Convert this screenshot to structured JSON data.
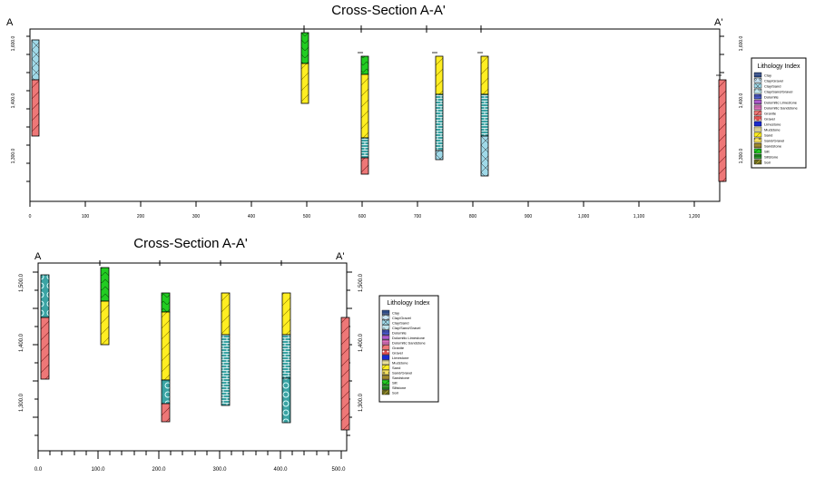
{
  "top": {
    "title": "Cross-Section A-A'",
    "end_left": "A",
    "end_right": "A'",
    "y_ticks": [
      "1,600.0",
      "1,400.0",
      "1,300.0"
    ],
    "x_ticks": [
      "0",
      "100",
      "200",
      "300",
      "400",
      "500",
      "600",
      "700",
      "800",
      "900",
      "1,000",
      "1,100",
      "1,200"
    ],
    "legend_title": "Lithology Index",
    "legend_items": [
      "Clay",
      "Clay/Gravel",
      "Clay/Sand",
      "Clay/Sand/Gravel",
      "Dolomite",
      "Dolomitic Limestone",
      "Dolomitic Sandstone",
      "Granite",
      "Gravel",
      "Limestone",
      "Mudstone",
      "Sand",
      "Sand/Gravel",
      "Sandstone",
      "Silt",
      "Siltstone",
      "Soil"
    ]
  },
  "bottom": {
    "title": "Cross-Section A-A'",
    "end_left": "A",
    "end_right": "A'",
    "y_ticks": [
      "1,500.0",
      "1,400.0",
      "1,300.0"
    ],
    "x_ticks": [
      "0.0",
      "100.0",
      "200.0",
      "300.0",
      "400.0",
      "500.0"
    ],
    "legend_title": "Lithology Index",
    "legend_items": [
      "Clay",
      "Clay/Gravel",
      "Clay/Sand",
      "Clay/Sand/Gravel",
      "Dolomite",
      "Dolomitic Limestone",
      "Dolomitic Sandstone",
      "Granite",
      "Gravel",
      "Limestone",
      "Mudstone",
      "Sand",
      "Sand/Gravel",
      "Sandstone",
      "Silt",
      "Siltstone",
      "Soil"
    ]
  },
  "colors": {
    "clay_sand": "#9fd9e8",
    "granite": "#ee7777",
    "silt": "#22cc22",
    "sand": "#ffee22",
    "limestone": "#3aa3a3",
    "dolomite": "#4a5ad0",
    "clay": "#2c4a86",
    "mudstone": "#e8e09a",
    "gravel": "#e05050",
    "soil": "#6a6a20"
  }
}
